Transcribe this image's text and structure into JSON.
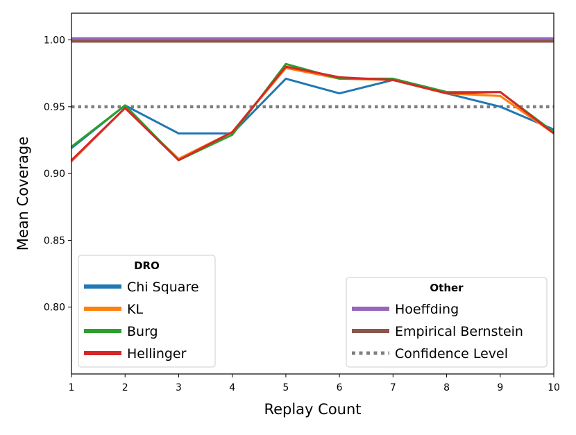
{
  "chart_data": {
    "type": "line",
    "xlabel": "Replay Count",
    "ylabel": "Mean Coverage",
    "xlim": [
      1,
      10
    ],
    "ylim": [
      0.75,
      1.02
    ],
    "x": [
      1,
      2,
      3,
      4,
      5,
      6,
      7,
      8,
      9,
      10
    ],
    "x_ticks": [
      "1",
      "2",
      "3",
      "4",
      "5",
      "6",
      "7",
      "8",
      "9",
      "10"
    ],
    "y_ticks": [
      0.8,
      0.85,
      0.9,
      0.95,
      1.0
    ],
    "y_tick_labels": [
      "0.80",
      "0.85",
      "0.90",
      "0.95",
      "1.00"
    ],
    "grid": false,
    "legends": [
      {
        "title": "DRO",
        "placement": "lower-left",
        "entries": [
          "Chi Square",
          "KL",
          "Burg",
          "Hellinger"
        ]
      },
      {
        "title": "Other",
        "placement": "lower-right",
        "entries": [
          "Hoeffding",
          "Empirical Bernstein",
          "Confidence Level"
        ]
      }
    ],
    "series": [
      {
        "name": "Chi Square",
        "color": "#1f77b4",
        "style": "solid",
        "values": [
          0.919,
          0.951,
          0.93,
          0.93,
          0.971,
          0.96,
          0.97,
          0.96,
          0.95,
          0.933
        ]
      },
      {
        "name": "KL",
        "color": "#ff7f0e",
        "style": "solid",
        "values": [
          0.909,
          0.949,
          0.911,
          0.931,
          0.979,
          0.971,
          0.97,
          0.96,
          0.958,
          0.93
        ]
      },
      {
        "name": "Burg",
        "color": "#2ca02c",
        "style": "solid",
        "values": [
          0.92,
          0.951,
          0.91,
          0.929,
          0.982,
          0.971,
          0.971,
          0.961,
          0.961,
          0.931
        ]
      },
      {
        "name": "Hellinger",
        "color": "#d62728",
        "style": "solid",
        "values": [
          0.91,
          0.949,
          0.91,
          0.931,
          0.98,
          0.972,
          0.97,
          0.96,
          0.961,
          0.93
        ]
      }
    ],
    "reference_lines": [
      {
        "name": "Hoeffding",
        "color": "#9467bd",
        "style": "solid",
        "y": 1.001
      },
      {
        "name": "Empirical Bernstein",
        "color": "#8c564b",
        "style": "solid",
        "y": 0.999
      },
      {
        "name": "Confidence Level",
        "color": "#7f7f7f",
        "style": "dotted",
        "y": 0.95
      }
    ]
  }
}
